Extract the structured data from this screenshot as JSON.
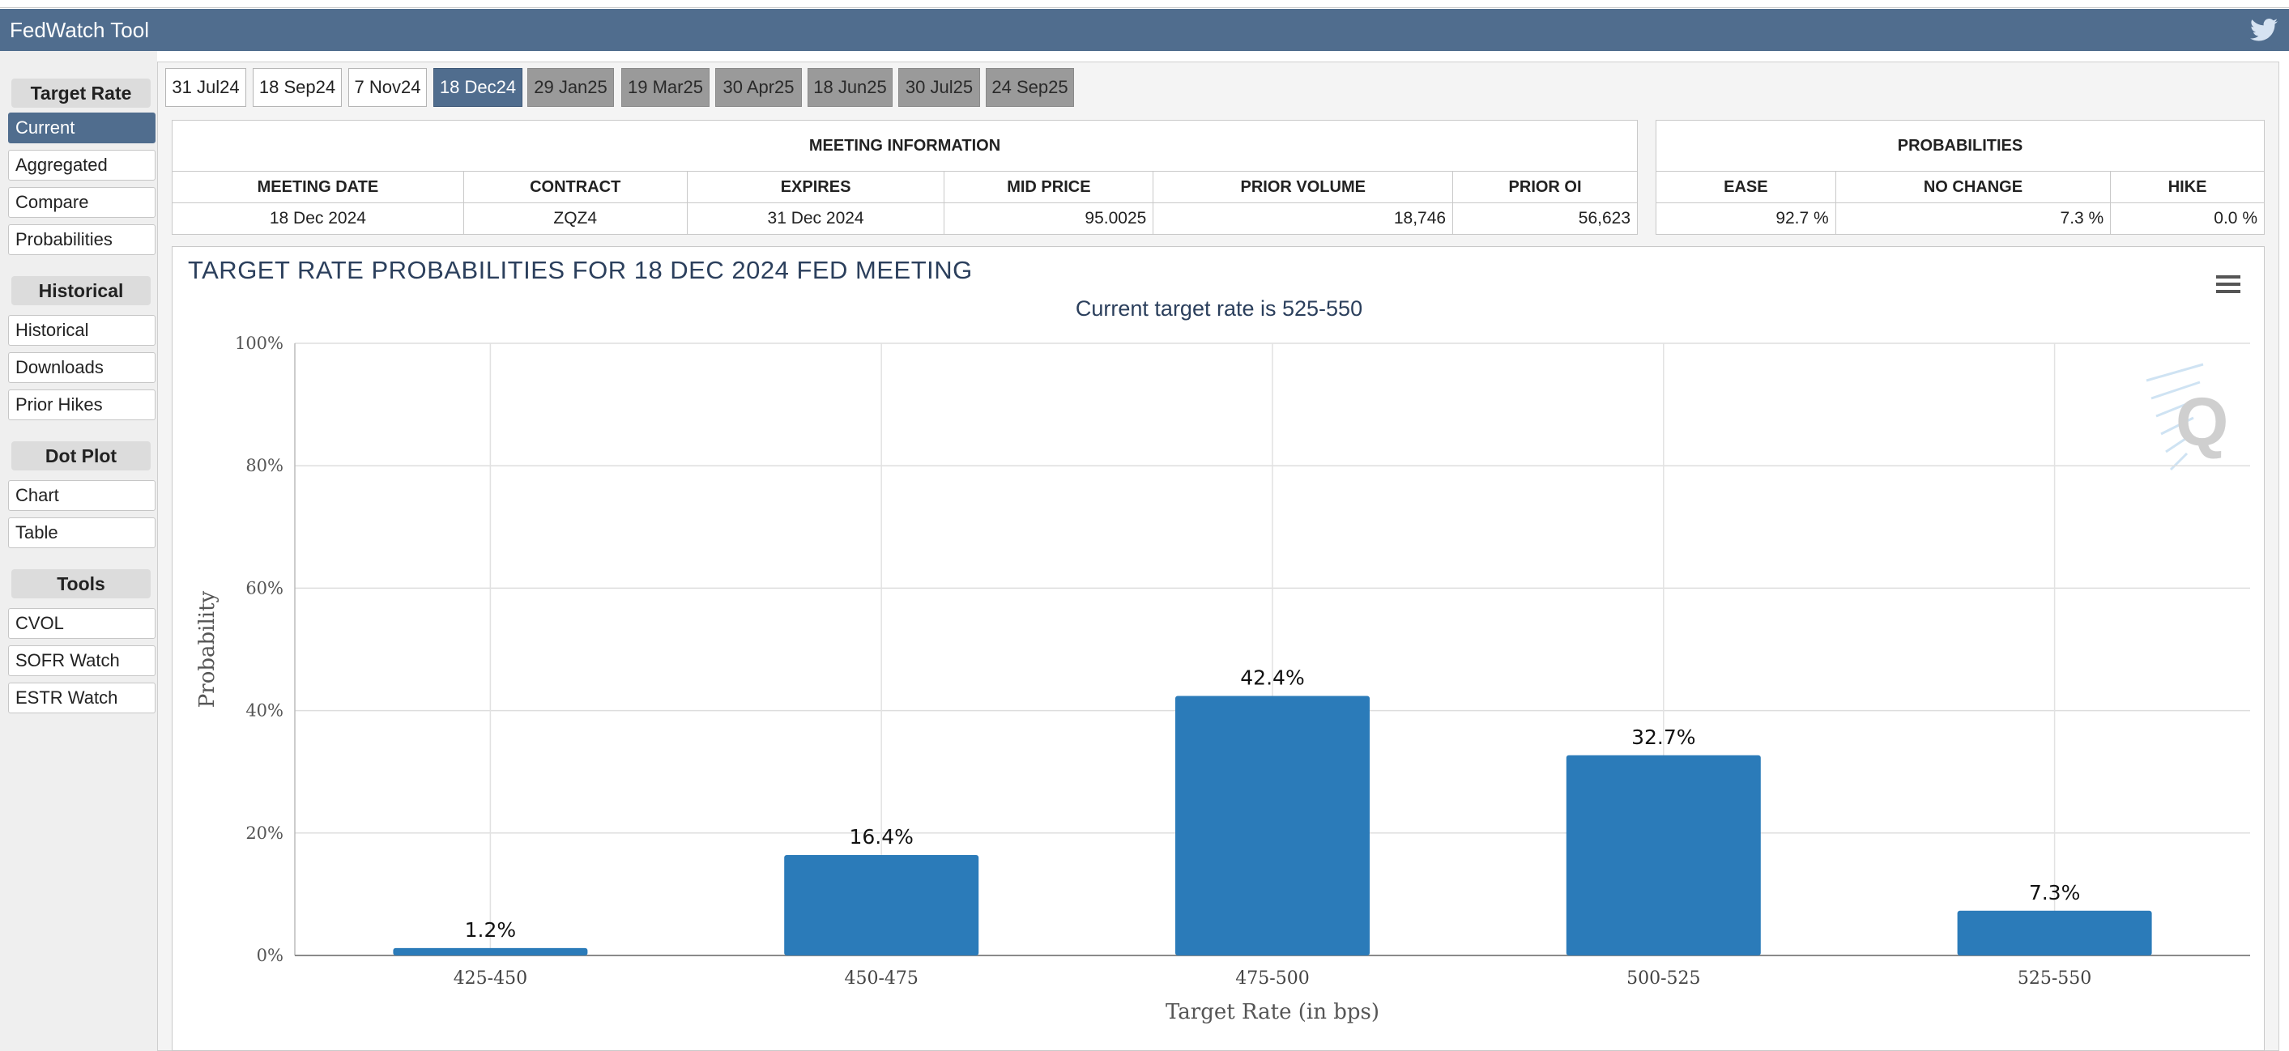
{
  "app": {
    "title": "FedWatch Tool"
  },
  "icons": {
    "twitter": "twitter-icon",
    "menu": "hamburger-menu-icon",
    "watermark": "q-logo-watermark"
  },
  "colors": {
    "header": "#506d8e",
    "bar": "#2b7bb9",
    "tab_future": "#9a9a9a"
  },
  "sidebar": {
    "sections": [
      {
        "title": "Target Rate",
        "items": [
          "Current",
          "Aggregated",
          "Compare",
          "Probabilities"
        ]
      },
      {
        "title": "Historical",
        "items": [
          "Historical",
          "Downloads",
          "Prior Hikes"
        ]
      },
      {
        "title": "Dot Plot",
        "items": [
          "Chart",
          "Table"
        ]
      },
      {
        "title": "Tools",
        "items": [
          "CVOL",
          "SOFR Watch",
          "ESTR Watch"
        ]
      }
    ],
    "active_item": "Current"
  },
  "tabs": [
    {
      "label": "31 Jul24",
      "state": "past"
    },
    {
      "label": "18 Sep24",
      "state": "past"
    },
    {
      "label": "7 Nov24",
      "state": "past"
    },
    {
      "label": "18 Dec24",
      "state": "active"
    },
    {
      "label": "29 Jan25",
      "state": "future"
    },
    {
      "label": "19 Mar25",
      "state": "future"
    },
    {
      "label": "30 Apr25",
      "state": "future"
    },
    {
      "label": "18 Jun25",
      "state": "future"
    },
    {
      "label": "30 Jul25",
      "state": "future"
    },
    {
      "label": "24 Sep25",
      "state": "future"
    }
  ],
  "meeting_info": {
    "title": "MEETING INFORMATION",
    "headers": [
      "MEETING DATE",
      "CONTRACT",
      "EXPIRES",
      "MID PRICE",
      "PRIOR VOLUME",
      "PRIOR OI"
    ],
    "values": [
      "18 Dec 2024",
      "ZQZ4",
      "31 Dec 2024",
      "95.0025",
      "18,746",
      "56,623"
    ]
  },
  "probabilities": {
    "title": "PROBABILITIES",
    "headers": [
      "EASE",
      "NO CHANGE",
      "HIKE"
    ],
    "values": [
      "92.7 %",
      "7.3 %",
      "0.0 %"
    ]
  },
  "chart": {
    "title": "TARGET RATE PROBABILITIES FOR 18 DEC 2024 FED MEETING",
    "subtitle": "Current target rate is 525-550"
  },
  "chart_data": {
    "type": "bar",
    "title": "TARGET RATE PROBABILITIES FOR 18 DEC 2024 FED MEETING",
    "subtitle": "Current target rate is 525-550",
    "categories": [
      "425-450",
      "450-475",
      "475-500",
      "500-525",
      "525-550"
    ],
    "values": [
      1.2,
      16.4,
      42.4,
      32.7,
      7.3
    ],
    "data_labels": [
      "1.2%",
      "16.4%",
      "42.4%",
      "32.7%",
      "7.3%"
    ],
    "xlabel": "Target Rate (in bps)",
    "ylabel": "Probability",
    "ylim": [
      0,
      100
    ],
    "yticks": [
      "0%",
      "20%",
      "40%",
      "60%",
      "80%",
      "100%"
    ],
    "ytick_values": [
      0,
      20,
      40,
      60,
      80,
      100
    ],
    "grid": true,
    "legend": "none"
  }
}
